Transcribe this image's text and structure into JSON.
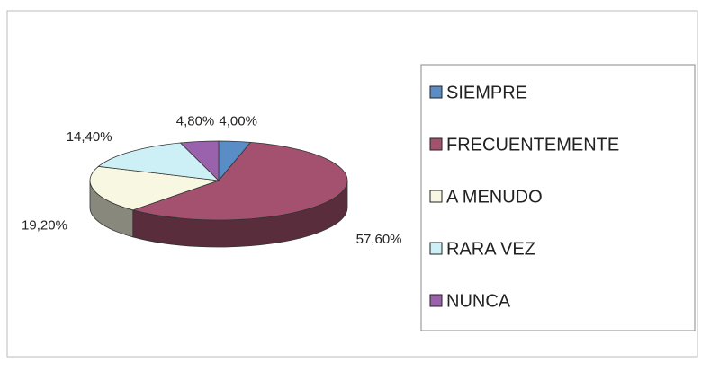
{
  "chart_data": {
    "type": "pie",
    "categories": [
      "SIEMPRE",
      "FRECUENTEMENTE",
      "A MENUDO",
      "RARA VEZ",
      "NUNCA"
    ],
    "values": [
      4.0,
      57.6,
      19.2,
      14.4,
      4.8
    ],
    "value_labels": [
      "4,00%",
      "57,60%",
      "19,20%",
      "14,40%",
      "4,80%"
    ],
    "colors": [
      "#5a8cc6",
      "#a3516f",
      "#f7f7e2",
      "#cdf0f7",
      "#9a62ad"
    ],
    "legend": "right"
  }
}
